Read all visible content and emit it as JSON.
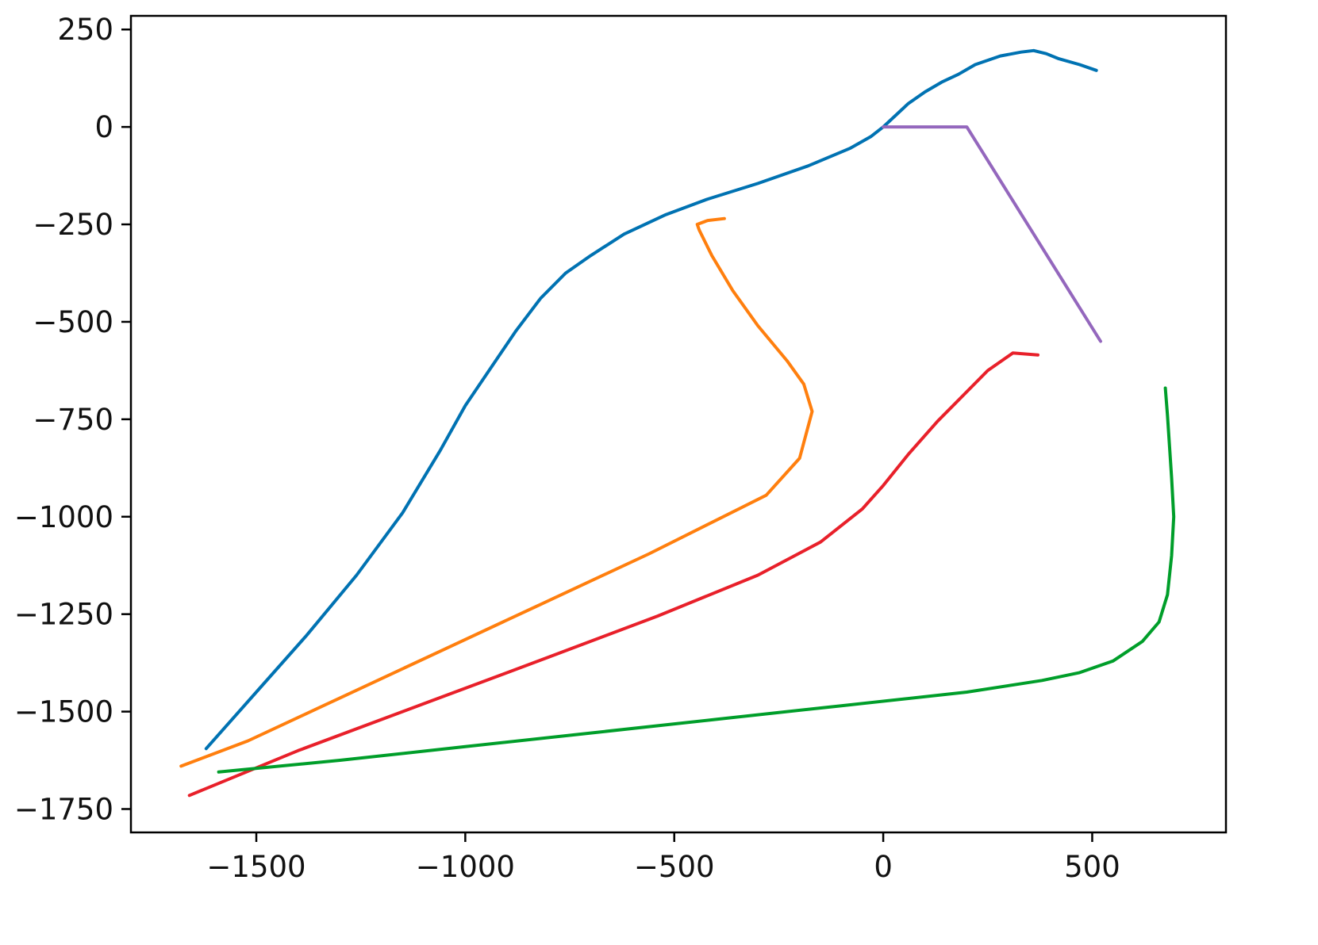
{
  "chart_data": {
    "type": "line",
    "title": "",
    "xlabel": "",
    "ylabel": "",
    "xlim": [
      -1800,
      820
    ],
    "ylim": [
      -1810,
      285
    ],
    "xticks": [
      -1500,
      -1000,
      -500,
      0,
      500
    ],
    "xtick_labels": [
      "−1500",
      "−1000",
      "−500",
      "0",
      "500"
    ],
    "yticks": [
      250,
      0,
      -250,
      -500,
      -750,
      -1000,
      -1250,
      -1500,
      -1750
    ],
    "ytick_labels": [
      "250",
      "0",
      "−250",
      "−500",
      "−750",
      "−1000",
      "−1250",
      "−1500",
      "−1750"
    ],
    "grid": false,
    "legend": "none",
    "series": [
      {
        "color": "#0072b2",
        "x": [
          -1620,
          -1500,
          -1380,
          -1260,
          -1150,
          -1060,
          -1000,
          -940,
          -880,
          -820,
          -760,
          -700,
          -620,
          -520,
          -420,
          -300,
          -180,
          -80,
          -30,
          0,
          30,
          60,
          100,
          140,
          180,
          220,
          280,
          330,
          360,
          390,
          420,
          470,
          510
        ],
        "y": [
          -1595,
          -1450,
          -1305,
          -1150,
          -990,
          -830,
          -715,
          -620,
          -525,
          -440,
          -375,
          -330,
          -275,
          -225,
          -185,
          -145,
          -100,
          -55,
          -25,
          0,
          30,
          60,
          90,
          115,
          135,
          160,
          182,
          192,
          196,
          188,
          175,
          160,
          145
        ]
      },
      {
        "color": "#ff7f0e",
        "x": [
          -1680,
          -1520,
          -1300,
          -1060,
          -820,
          -560,
          -280,
          -200,
          -170,
          -190,
          -230,
          -300,
          -360,
          -410,
          -440,
          -445,
          -420,
          -380
        ],
        "y": [
          -1640,
          -1575,
          -1465,
          -1345,
          -1225,
          -1095,
          -945,
          -850,
          -730,
          -660,
          -600,
          -510,
          -420,
          -330,
          -265,
          -250,
          -240,
          -235
        ]
      },
      {
        "color": "#e8202a",
        "x": [
          -1660,
          -1400,
          -1100,
          -800,
          -540,
          -300,
          -150,
          -50,
          0,
          60,
          130,
          190,
          250,
          310,
          370
        ],
        "y": [
          -1715,
          -1600,
          -1480,
          -1360,
          -1255,
          -1150,
          -1065,
          -980,
          -920,
          -840,
          -755,
          -690,
          -625,
          -580,
          -585
        ]
      },
      {
        "color": "#009e2a",
        "x": [
          -1590,
          -1300,
          -1000,
          -700,
          -400,
          -100,
          200,
          380,
          470,
          550,
          620,
          660,
          680,
          690,
          695,
          690,
          685,
          680,
          675
        ],
        "y": [
          -1655,
          -1625,
          -1590,
          -1555,
          -1520,
          -1485,
          -1450,
          -1420,
          -1400,
          -1370,
          -1320,
          -1270,
          -1200,
          -1100,
          -1000,
          -900,
          -820,
          -740,
          -670
        ]
      },
      {
        "color": "#9467bd",
        "x": [
          0,
          200,
          520
        ],
        "y": [
          0,
          0,
          -550
        ]
      }
    ]
  }
}
